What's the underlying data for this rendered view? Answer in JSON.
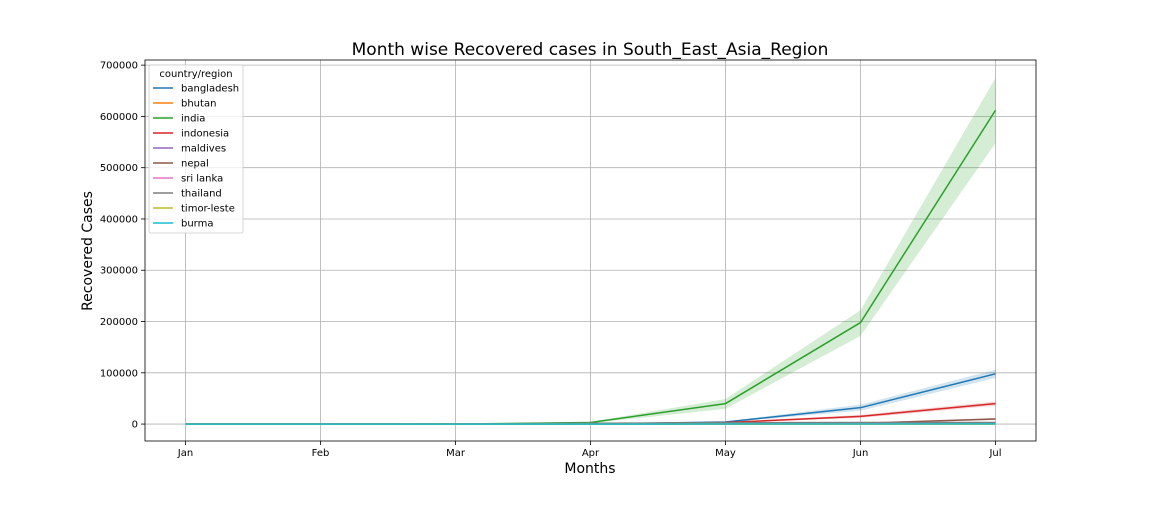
{
  "chart_data": {
    "type": "line",
    "title": "Month wise Recovered cases in South_East_Asia_Region",
    "xlabel": "Months",
    "ylabel": "Recovered Cases",
    "categories": [
      "Jan",
      "Feb",
      "Mar",
      "Apr",
      "May",
      "Jun",
      "Jul"
    ],
    "yticks": [
      0,
      100000,
      200000,
      300000,
      400000,
      500000,
      600000,
      700000
    ],
    "ylim": [
      -33000,
      710000
    ],
    "grid": true,
    "legend": {
      "title": "country/region",
      "placement": "top-left"
    },
    "series": [
      {
        "name": "bangladesh",
        "color": "#1f77b4",
        "values": [
          0,
          0,
          0,
          100,
          4000,
          32000,
          98000
        ],
        "ci_low": [
          0,
          0,
          0,
          50,
          3000,
          26000,
          90000
        ],
        "ci_high": [
          0,
          0,
          0,
          150,
          5000,
          38000,
          106000
        ]
      },
      {
        "name": "bhutan",
        "color": "#ff7f0e",
        "values": [
          0,
          0,
          0,
          0,
          5,
          30,
          80
        ],
        "ci_low": [
          0,
          0,
          0,
          0,
          0,
          20,
          60
        ],
        "ci_high": [
          0,
          0,
          0,
          0,
          10,
          40,
          100
        ]
      },
      {
        "name": "india",
        "color": "#2ca02c",
        "values": [
          0,
          0,
          50,
          3000,
          40000,
          198000,
          612000
        ],
        "ci_low": [
          0,
          0,
          20,
          1500,
          30000,
          172000,
          548000
        ],
        "ci_high": [
          0,
          0,
          100,
          4500,
          49000,
          222000,
          675000
        ]
      },
      {
        "name": "indonesia",
        "color": "#d62728",
        "values": [
          0,
          0,
          10,
          300,
          3000,
          15000,
          40000
        ],
        "ci_low": [
          0,
          0,
          5,
          200,
          2000,
          12000,
          36000
        ],
        "ci_high": [
          0,
          0,
          15,
          400,
          4000,
          18000,
          44000
        ]
      },
      {
        "name": "maldives",
        "color": "#9467bd",
        "values": [
          0,
          0,
          0,
          10,
          400,
          1500,
          2500
        ],
        "ci_low": [
          0,
          0,
          0,
          5,
          200,
          1200,
          2200
        ],
        "ci_high": [
          0,
          0,
          0,
          15,
          600,
          1800,
          2800
        ]
      },
      {
        "name": "nepal",
        "color": "#8c564b",
        "values": [
          0,
          0,
          0,
          10,
          50,
          1500,
          10000
        ],
        "ci_low": [
          0,
          0,
          0,
          5,
          20,
          800,
          8000
        ],
        "ci_high": [
          0,
          0,
          0,
          15,
          80,
          2200,
          12000
        ]
      },
      {
        "name": "sri lanka",
        "color": "#e377c2",
        "values": [
          0,
          0,
          0,
          100,
          500,
          1500,
          1900
        ],
        "ci_low": [
          0,
          0,
          0,
          50,
          300,
          1300,
          1800
        ],
        "ci_high": [
          0,
          0,
          0,
          150,
          700,
          1700,
          2000
        ]
      },
      {
        "name": "thailand",
        "color": "#7f7f7f",
        "values": [
          0,
          0,
          50,
          1500,
          2800,
          3000,
          3100
        ],
        "ci_low": [
          0,
          0,
          20,
          1000,
          2700,
          2950,
          3080
        ],
        "ci_high": [
          0,
          0,
          80,
          2000,
          2900,
          3050,
          3120
        ]
      },
      {
        "name": "timor-leste",
        "color": "#bcbd22",
        "values": [
          0,
          0,
          0,
          5,
          24,
          24,
          24
        ],
        "ci_low": [
          0,
          0,
          0,
          2,
          24,
          24,
          24
        ],
        "ci_high": [
          0,
          0,
          0,
          8,
          24,
          24,
          24
        ]
      },
      {
        "name": "burma",
        "color": "#17becf",
        "values": [
          0,
          0,
          0,
          5,
          100,
          250,
          300
        ],
        "ci_low": [
          0,
          0,
          0,
          2,
          80,
          230,
          290
        ],
        "ci_high": [
          0,
          0,
          0,
          8,
          120,
          270,
          310
        ]
      }
    ]
  }
}
